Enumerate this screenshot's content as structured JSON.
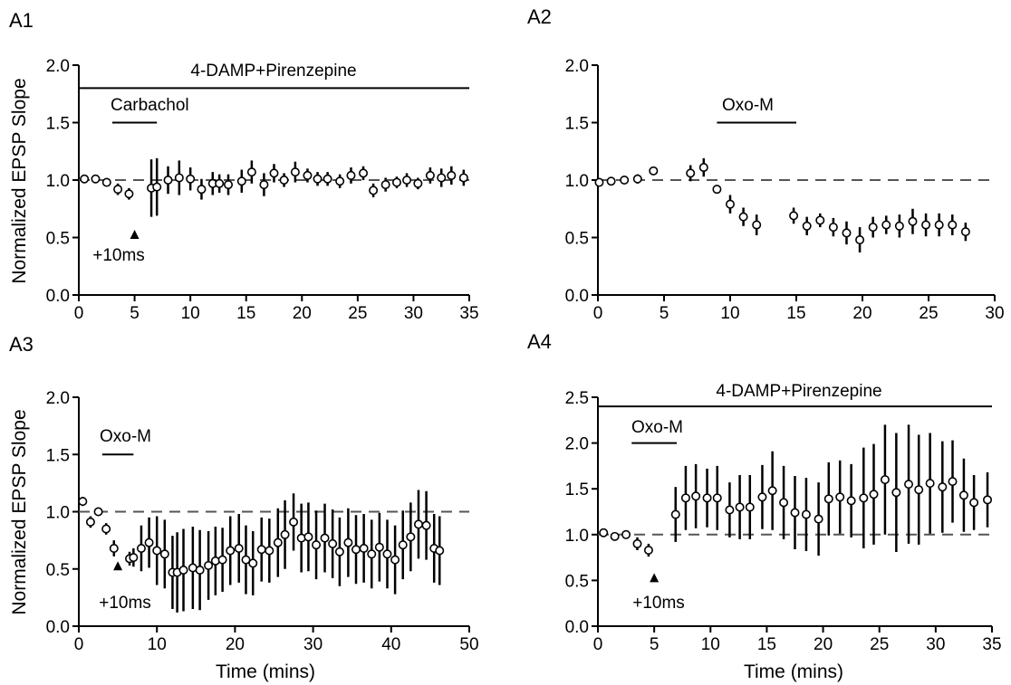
{
  "figure": {
    "axis_color": "#000000",
    "marker_color": "#000000",
    "dash_color": "#555555"
  },
  "chart_data": [
    {
      "panel": "A1",
      "type": "scatter",
      "title": "",
      "xlabel": "",
      "ylabel": "Normalized EPSP Slope",
      "xlim": [
        0,
        35
      ],
      "ylim": [
        0,
        2
      ],
      "xticks": [
        0,
        5,
        10,
        15,
        20,
        25,
        30,
        35
      ],
      "yticks": [
        0.0,
        0.5,
        1.0,
        1.5,
        2.0
      ],
      "baseline": 1.0,
      "grid": false,
      "bars": [
        {
          "label": "4-DAMP+Pirenzepine",
          "from": 0,
          "to": 35,
          "y": 1.8
        },
        {
          "label": "Carbachol",
          "from": 3,
          "to": 7,
          "y": 1.5
        }
      ],
      "arrow": {
        "label": "+10ms",
        "x": 5,
        "y": 0.52
      },
      "series": [
        {
          "x": [
            0.5,
            1.5,
            2.5,
            3.5,
            4.5,
            6.5,
            7.0,
            8.0,
            9.0,
            10.0,
            11.0,
            12.0,
            12.6,
            13.4,
            14.6,
            15.5,
            16.6,
            17.5,
            18.4,
            19.4,
            20.5,
            21.4,
            22.3,
            23.4,
            24.4,
            25.5,
            26.4,
            27.5,
            28.5,
            29.4,
            30.4,
            31.5,
            32.5,
            33.4,
            34.5
          ],
          "y": [
            1.01,
            1.01,
            0.98,
            0.92,
            0.88,
            0.93,
            0.94,
            1.0,
            1.02,
            1.01,
            0.92,
            0.97,
            0.97,
            0.96,
            0.99,
            1.07,
            0.96,
            1.06,
            1.0,
            1.07,
            1.04,
            1.01,
            1.01,
            0.99,
            1.04,
            1.06,
            0.91,
            0.96,
            0.98,
            1.0,
            0.97,
            1.04,
            1.02,
            1.04,
            1.02
          ],
          "err": [
            0.02,
            0.02,
            0.03,
            0.05,
            0.05,
            0.25,
            0.25,
            0.12,
            0.15,
            0.1,
            0.09,
            0.1,
            0.08,
            0.09,
            0.1,
            0.1,
            0.1,
            0.08,
            0.06,
            0.09,
            0.06,
            0.06,
            0.06,
            0.06,
            0.07,
            0.06,
            0.06,
            0.06,
            0.05,
            0.06,
            0.05,
            0.07,
            0.08,
            0.08,
            0.07
          ]
        }
      ]
    },
    {
      "panel": "A2",
      "type": "scatter",
      "title": "",
      "xlabel": "",
      "ylabel": "",
      "xlim": [
        0,
        30
      ],
      "ylim": [
        0,
        2
      ],
      "xticks": [
        0,
        5,
        10,
        15,
        20,
        25,
        30
      ],
      "yticks": [
        0.0,
        0.5,
        1.0,
        1.5,
        2.0
      ],
      "baseline": 1.0,
      "grid": false,
      "bars": [
        {
          "label": "Oxo-M",
          "from": 9,
          "to": 15,
          "y": 1.5
        }
      ],
      "series": [
        {
          "x": [
            0.1,
            1.0,
            2.0,
            3.0,
            4.2,
            7.0,
            8.0,
            9.0,
            10.0,
            11.0,
            12.0,
            14.8,
            15.8,
            16.8,
            17.8,
            18.8,
            19.8,
            20.8,
            21.8,
            22.8,
            23.8,
            24.8,
            25.8,
            26.8,
            27.8
          ],
          "y": [
            0.98,
            0.99,
            1.0,
            1.01,
            1.08,
            1.06,
            1.11,
            0.92,
            0.79,
            0.68,
            0.61,
            0.69,
            0.6,
            0.65,
            0.59,
            0.54,
            0.48,
            0.59,
            0.61,
            0.6,
            0.64,
            0.61,
            0.61,
            0.61,
            0.55
          ],
          "err": [
            0.02,
            0.02,
            0.03,
            0.04,
            0.01,
            0.07,
            0.08,
            0.03,
            0.08,
            0.08,
            0.09,
            0.07,
            0.08,
            0.06,
            0.08,
            0.1,
            0.11,
            0.09,
            0.08,
            0.1,
            0.11,
            0.1,
            0.1,
            0.09,
            0.08
          ]
        }
      ]
    },
    {
      "panel": "A3",
      "type": "scatter",
      "title": "",
      "xlabel": "Time (mins)",
      "ylabel": "Normalized EPSP Slope",
      "xlim": [
        0,
        50
      ],
      "ylim": [
        0,
        2
      ],
      "xticks": [
        0,
        10,
        20,
        30,
        40,
        50
      ],
      "yticks": [
        0.0,
        0.5,
        1.0,
        1.5,
        2.0
      ],
      "baseline": 1.0,
      "grid": false,
      "bars": [
        {
          "label": "Oxo-M",
          "from": 3,
          "to": 7,
          "y": 1.5
        }
      ],
      "arrow": {
        "label": "+10ms",
        "x": 5,
        "y": 0.52
      },
      "series": [
        {
          "x": [
            0.5,
            1.5,
            2.5,
            3.5,
            4.5,
            6.5,
            7.0,
            8.0,
            9.0,
            10.0,
            11.0,
            12.0,
            12.6,
            13.4,
            14.6,
            15.5,
            16.6,
            17.5,
            18.4,
            19.4,
            20.5,
            21.4,
            22.3,
            23.4,
            24.4,
            25.5,
            26.4,
            27.5,
            28.5,
            29.4,
            30.4,
            31.5,
            32.5,
            33.4,
            34.5,
            35.5,
            36.5,
            37.5,
            38.5,
            39.5,
            40.5,
            41.5,
            42.5,
            43.5,
            44.5,
            45.5,
            46.2
          ],
          "y": [
            1.09,
            0.91,
            1.0,
            0.85,
            0.68,
            0.59,
            0.6,
            0.68,
            0.73,
            0.66,
            0.63,
            0.47,
            0.47,
            0.49,
            0.51,
            0.49,
            0.53,
            0.57,
            0.58,
            0.66,
            0.68,
            0.58,
            0.55,
            0.67,
            0.66,
            0.73,
            0.8,
            0.91,
            0.77,
            0.78,
            0.71,
            0.77,
            0.72,
            0.65,
            0.73,
            0.67,
            0.68,
            0.63,
            0.69,
            0.63,
            0.58,
            0.71,
            0.78,
            0.89,
            0.88,
            0.68,
            0.66
          ],
          "err": [
            0.04,
            0.05,
            0.01,
            0.05,
            0.07,
            0.06,
            0.08,
            0.2,
            0.22,
            0.3,
            0.3,
            0.32,
            0.35,
            0.36,
            0.36,
            0.35,
            0.3,
            0.3,
            0.28,
            0.3,
            0.3,
            0.3,
            0.28,
            0.28,
            0.28,
            0.3,
            0.3,
            0.25,
            0.3,
            0.3,
            0.3,
            0.3,
            0.3,
            0.3,
            0.3,
            0.3,
            0.3,
            0.3,
            0.3,
            0.3,
            0.3,
            0.3,
            0.3,
            0.3,
            0.3,
            0.3,
            0.3
          ]
        }
      ]
    },
    {
      "panel": "A4",
      "type": "scatter",
      "title": "",
      "xlabel": "Time (mins)",
      "ylabel": "",
      "xlim": [
        0,
        35
      ],
      "ylim": [
        0,
        2.5
      ],
      "xticks": [
        0,
        5,
        10,
        15,
        20,
        25,
        30,
        35
      ],
      "yticks": [
        0.0,
        0.5,
        1.0,
        1.5,
        2.0,
        2.5
      ],
      "baseline": 1.0,
      "grid": false,
      "bars": [
        {
          "label": "4-DAMP+Pirenzepine",
          "from": 0,
          "to": 35,
          "y": 2.4
        },
        {
          "label": "Oxo-M",
          "from": 3,
          "to": 7,
          "y": 2.0
        }
      ],
      "arrow": {
        "label": "+10ms",
        "x": 5,
        "y": 0.52
      },
      "series": [
        {
          "x": [
            0.5,
            1.5,
            2.5,
            3.5,
            4.5,
            6.9,
            7.8,
            8.7,
            9.7,
            10.6,
            11.7,
            12.6,
            13.5,
            14.6,
            15.5,
            16.5,
            17.5,
            18.5,
            19.6,
            20.5,
            21.5,
            22.5,
            23.6,
            24.5,
            25.5,
            26.5,
            27.6,
            28.5,
            29.5,
            30.6,
            31.5,
            32.5,
            33.4,
            34.6
          ],
          "y": [
            1.02,
            0.98,
            1.0,
            0.9,
            0.83,
            1.22,
            1.4,
            1.42,
            1.4,
            1.4,
            1.27,
            1.3,
            1.3,
            1.41,
            1.48,
            1.35,
            1.24,
            1.22,
            1.17,
            1.39,
            1.41,
            1.37,
            1.4,
            1.44,
            1.6,
            1.46,
            1.55,
            1.49,
            1.56,
            1.52,
            1.58,
            1.43,
            1.35,
            1.38
          ],
          "err": [
            0.03,
            0.03,
            0.03,
            0.07,
            0.07,
            0.3,
            0.35,
            0.35,
            0.32,
            0.35,
            0.3,
            0.35,
            0.35,
            0.35,
            0.43,
            0.4,
            0.4,
            0.4,
            0.4,
            0.4,
            0.4,
            0.4,
            0.55,
            0.55,
            0.6,
            0.65,
            0.65,
            0.6,
            0.55,
            0.5,
            0.45,
            0.4,
            0.3,
            0.3
          ]
        }
      ]
    }
  ]
}
